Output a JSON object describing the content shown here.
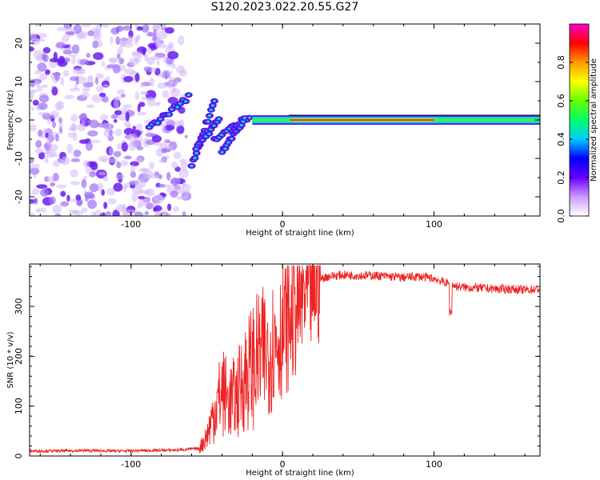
{
  "title": "S120.2023.022.20.55.G27",
  "chart_data": [
    {
      "type": "heatmap",
      "title": "",
      "xlabel": "Height of straight line (km)",
      "ylabel": "Frequency (Hz)",
      "xlim": [
        -167,
        170
      ],
      "ylim": [
        -25,
        25
      ],
      "x_ticks": [
        -100,
        0,
        100
      ],
      "y_ticks": [
        -20,
        -10,
        0,
        10,
        20
      ],
      "colorbar": {
        "label": "Normalized spectral amplitude",
        "range": [
          0,
          1
        ],
        "ticks": [
          0.0,
          0.2,
          0.4,
          0.6,
          0.8
        ],
        "colors": [
          "#ffffff",
          "#cc99ff",
          "#6600ff",
          "#0000ff",
          "#00ccff",
          "#00ff66",
          "#66ff00",
          "#ffff00",
          "#ff9900",
          "#ff0000",
          "#ff00cc"
        ]
      },
      "features": {
        "noise_region_x": [
          -167,
          -63
        ],
        "signal_line_frequency": 0,
        "signal_start_x": -20,
        "diverging_branches_x": [
          -90,
          -20
        ]
      }
    },
    {
      "type": "line",
      "title": "",
      "xlabel": "Height of straight line (km)",
      "ylabel": "SNR (10 * v/v)",
      "xlim": [
        -167,
        170
      ],
      "ylim": [
        0,
        385
      ],
      "x_ticks": [
        -100,
        0,
        100
      ],
      "y_ticks": [
        0,
        100,
        200,
        300
      ],
      "series": [
        {
          "color": "#ee2222",
          "x": [
            -167,
            -150,
            -130,
            -110,
            -90,
            -70,
            -55,
            -50,
            -45,
            -40,
            -35,
            -30,
            -25,
            -20,
            -15,
            -10,
            -5,
            0,
            5,
            10,
            15,
            20,
            25,
            30,
            40,
            50,
            60,
            70,
            80,
            90,
            100,
            105,
            110,
            115,
            120,
            130,
            140,
            150,
            160,
            170
          ],
          "values": [
            10,
            10,
            11,
            10,
            11,
            12,
            15,
            40,
            90,
            130,
            110,
            120,
            160,
            180,
            200,
            210,
            230,
            250,
            270,
            300,
            320,
            340,
            355,
            360,
            363,
            362,
            362,
            360,
            358,
            360,
            356,
            350,
            345,
            340,
            338,
            337,
            335,
            335,
            333,
            335
          ]
        }
      ]
    }
  ]
}
